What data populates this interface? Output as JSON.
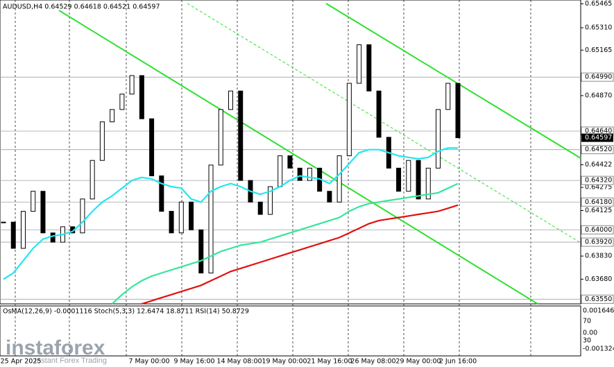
{
  "chart_data": {
    "type": "candlestick",
    "title": "AUDUSD,H4 0.64529 0.64618 0.64521 0.64597",
    "close": [
      0.6405,
      0.6388,
      0.6412,
      0.6425,
      0.6398,
      0.6392,
      0.6402,
      0.6398,
      0.642,
      0.6445,
      0.647,
      0.6478,
      0.6488,
      0.65,
      0.6472,
      0.6435,
      0.6412,
      0.6398,
      0.6418,
      0.64,
      0.6372,
      0.6442,
      0.6478,
      0.649,
      0.6432,
      0.6418,
      0.641,
      0.6428,
      0.6448,
      0.644,
      0.6432,
      0.644,
      0.6425,
      0.6418,
      0.6448,
      0.6495,
      0.652,
      0.649,
      0.646,
      0.644,
      0.6425,
      0.6445,
      0.642,
      0.644,
      0.6478,
      0.6495,
      0.64597
    ],
    "color": "#000000",
    "series": [
      {
        "color": "#22e6ee",
        "values": [
          0.6368,
          0.6372,
          0.638,
          0.6388,
          0.6394,
          0.6396,
          0.6397,
          0.6399,
          0.6405,
          0.6412,
          0.6418,
          0.6422,
          0.6427,
          0.6432,
          0.6434,
          0.6433,
          0.643,
          0.6428,
          0.6427,
          0.642,
          0.6418,
          0.6425,
          0.6428,
          0.643,
          0.6428,
          0.6425,
          0.6423,
          0.6425,
          0.6428,
          0.6432,
          0.6435,
          0.6434,
          0.6433,
          0.643,
          0.6436,
          0.6443,
          0.645,
          0.6452,
          0.6452,
          0.645,
          0.6448,
          0.6447,
          0.6446,
          0.6447,
          0.6451,
          0.6453,
          0.6453
        ]
      },
      {
        "color": "#33e69a",
        "values": [
          null,
          null,
          null,
          null,
          null,
          null,
          null,
          null,
          null,
          null,
          null,
          0.6352,
          0.6358,
          0.6363,
          0.6367,
          0.637,
          0.6372,
          0.6374,
          0.6376,
          0.6378,
          0.638,
          0.6383,
          0.6386,
          0.6388,
          0.639,
          0.6391,
          0.6392,
          0.6394,
          0.6396,
          0.6398,
          0.64,
          0.6402,
          0.6404,
          0.6406,
          0.6408,
          0.6412,
          0.6415,
          0.6417,
          0.6418,
          0.6419,
          0.642,
          0.6421,
          0.6422,
          0.6423,
          0.6424,
          0.6427,
          0.643
        ]
      },
      {
        "color": "#e01010",
        "values": [
          null,
          null,
          null,
          null,
          null,
          null,
          null,
          null,
          null,
          null,
          null,
          null,
          null,
          null,
          0.6352,
          0.6354,
          0.6356,
          0.6358,
          0.636,
          0.6362,
          0.6364,
          0.6367,
          0.637,
          0.6373,
          0.6375,
          0.6377,
          0.6379,
          0.6381,
          0.6383,
          0.6385,
          0.6387,
          0.6389,
          0.6391,
          0.6393,
          0.6395,
          0.6398,
          0.6401,
          0.6404,
          0.6406,
          0.6407,
          0.6408,
          0.6409,
          0.641,
          0.6411,
          0.6412,
          0.6414,
          0.6416
        ]
      }
    ],
    "ylim": [
      0.6352,
      0.6549
    ],
    "yticks": [
      0.65465,
      {
        "value": 0.6531,
        "label": "0.65310"
      },
      0.65165,
      {
        "value": 0.6487,
        "label": "0.64870"
      },
      0.64422,
      0.64275,
      0.64125,
      {
        "value": 0.6383,
        "label": "0.63830"
      },
      {
        "value": 0.6368,
        "label": "0.63680"
      }
    ],
    "levels": [
      {
        "value": 0.6499,
        "label": "0.64990"
      },
      {
        "value": 0.6464,
        "label": "0.64640"
      },
      {
        "value": 0.6452,
        "label": "0.64520"
      },
      {
        "value": 0.6432,
        "label": "0.64320"
      },
      {
        "value": 0.6418,
        "label": "0.64180"
      },
      {
        "value": 0.64,
        "label": "0.64000"
      },
      {
        "value": 0.6392,
        "label": "0.63920"
      },
      {
        "value": 0.6355,
        "label": "0.63550"
      }
    ],
    "current_price": 0.64597,
    "x_labels": [
      "25 Apr 2025",
      "7 May 00:00",
      "9 May 16:00",
      "14 May 08:00",
      "19 May 00:00",
      "21 May 16:00",
      "26 May 08:00",
      "29 May 00:00",
      "2 Jun 16:00"
    ],
    "indicator_title": "OsMA(12,26,9) -0.0001116 Stoch(5,3,3) 12.6474 18.8711 RSI(14) 50.8729",
    "indicator_labels": [
      "0.0016465",
      "70",
      "0.00",
      "30",
      "-0.0013245"
    ],
    "watermark": {
      "brand": "instaforex",
      "tagline": "Instant Forex Trading"
    }
  }
}
